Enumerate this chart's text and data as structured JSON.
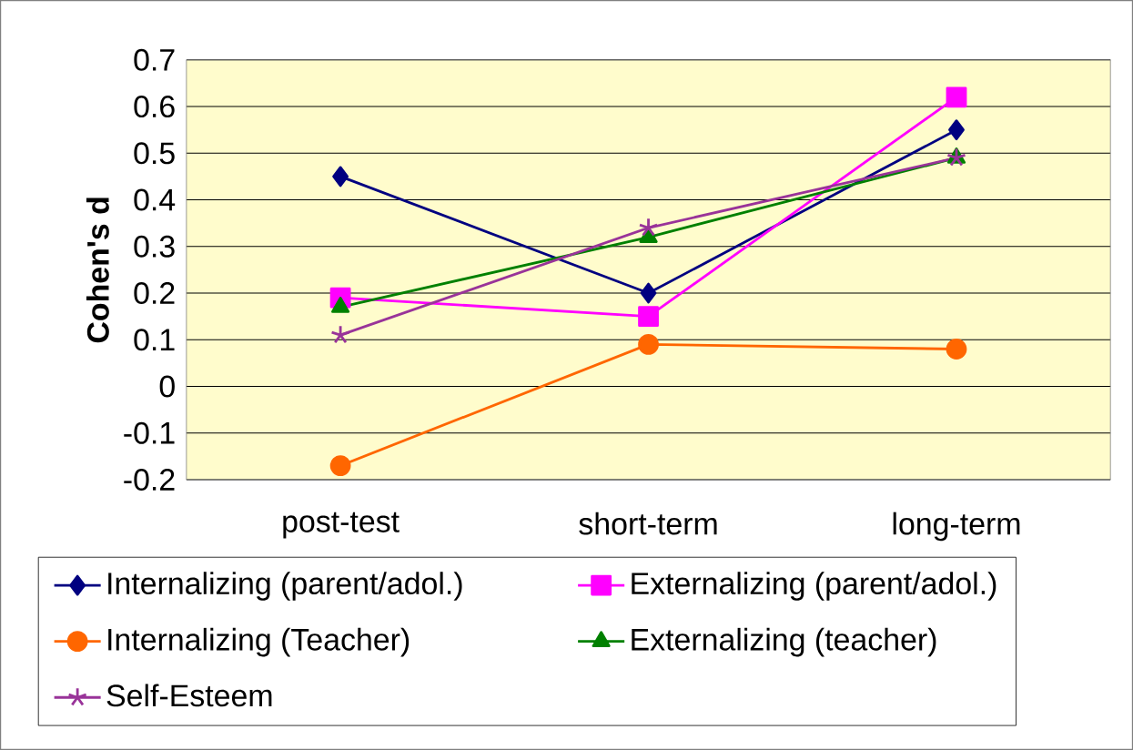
{
  "chart_data": {
    "type": "line",
    "ylabel": "Cohen's d",
    "categories": [
      "post-test",
      "short-term",
      "long-term"
    ],
    "series": [
      {
        "name": "Internalizing (parent/adol.)",
        "color": "#000080",
        "marker": "diamond",
        "values": [
          0.45,
          0.2,
          0.55
        ]
      },
      {
        "name": "Externalizing (parent/adol.)",
        "color": "#ff00ff",
        "marker": "square",
        "values": [
          0.19,
          0.15,
          0.62
        ]
      },
      {
        "name": "Internalizing (Teacher)",
        "color": "#ff6600",
        "marker": "circle",
        "values": [
          -0.17,
          0.09,
          0.08
        ]
      },
      {
        "name": "Externalizing (teacher)",
        "color": "#008000",
        "marker": "triangle",
        "values": [
          0.17,
          0.32,
          0.49
        ]
      },
      {
        "name": "Self-Esteem",
        "color": "#993399",
        "marker": "cross",
        "values": [
          0.11,
          0.34,
          0.49
        ]
      }
    ],
    "ylim": [
      -0.2,
      0.7
    ],
    "yticks": [
      -0.2,
      -0.1,
      0,
      0.1,
      0.2,
      0.3,
      0.4,
      0.5,
      0.6,
      0.7
    ],
    "grid": "y",
    "legend": "bottom",
    "line_style": "solid"
  }
}
